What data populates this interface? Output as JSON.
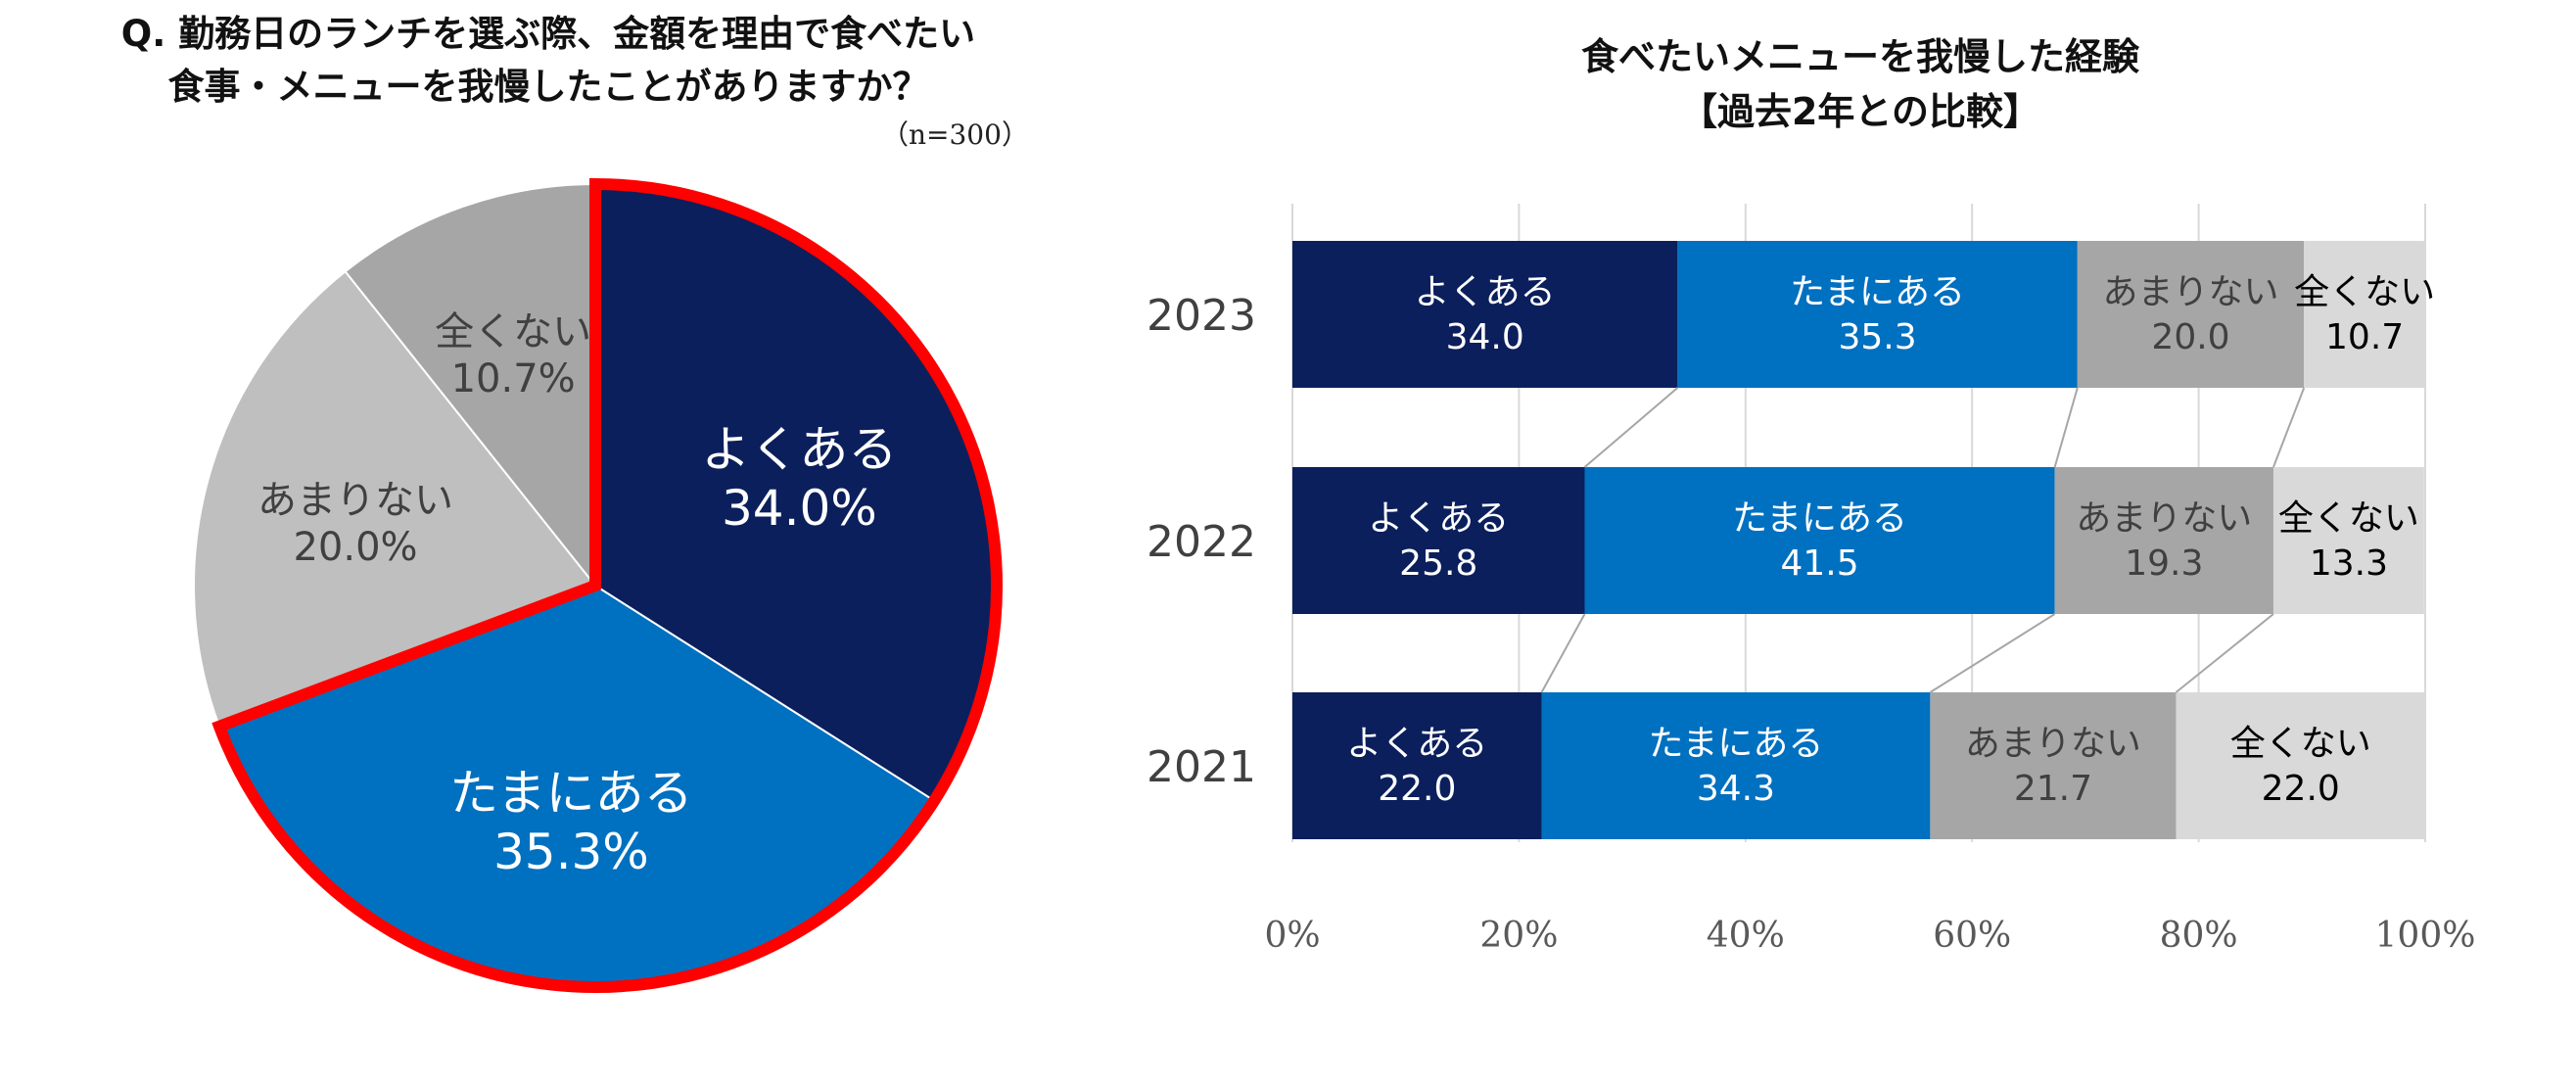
{
  "chart_data": [
    {
      "type": "pie",
      "title_lines": [
        "Q. 勤務日のランチを選ぶ際、金額を理由で食べたい",
        "食事・メニューを我慢したことがありますか？"
      ],
      "subtitle": "（n=300）",
      "slices": [
        {
          "label": "よくある",
          "value": 34.0,
          "display": "34.0%",
          "color": "#0b1f5c",
          "text_color": "#ffffff",
          "highlighted": true
        },
        {
          "label": "たまにある",
          "value": 35.3,
          "display": "35.3%",
          "color": "#0070c0",
          "text_color": "#ffffff",
          "highlighted": true
        },
        {
          "label": "あまりない",
          "value": 20.0,
          "display": "20.0%",
          "color": "#bfbfbf",
          "text_color": "#404040",
          "highlighted": false
        },
        {
          "label": "全くない",
          "value": 10.7,
          "display": "10.7%",
          "color": "#a6a6a6",
          "text_color": "#404040",
          "highlighted": false
        }
      ],
      "highlight_color": "#ff0000"
    },
    {
      "type": "bar",
      "orientation": "horizontal",
      "stacked": true,
      "title_lines": [
        "食べたいメニューを我慢した経験",
        "【過去2年との比較】"
      ],
      "categories": [
        "2023",
        "2022",
        "2021"
      ],
      "series": [
        {
          "name": "よくある",
          "values": [
            34.0,
            25.8,
            22.0
          ],
          "display": [
            "34.0",
            "25.8",
            "22.0"
          ],
          "color": "#0b1f5c",
          "text_color": "#ffffff"
        },
        {
          "name": "たまにある",
          "values": [
            35.3,
            41.5,
            34.3
          ],
          "display": [
            "35.3",
            "41.5",
            "34.3"
          ],
          "color": "#0070c0",
          "text_color": "#ffffff"
        },
        {
          "name": "あまりない",
          "values": [
            20.0,
            19.3,
            21.7
          ],
          "display": [
            "20.0",
            "19.3",
            "21.7"
          ],
          "color": "#a6a6a6",
          "text_color": "#404040"
        },
        {
          "name": "全くない",
          "values": [
            10.7,
            13.3,
            22.0
          ],
          "display": [
            "10.7",
            "13.3",
            "22.0"
          ],
          "color": "#d9d9d9",
          "text_color": "#000000"
        }
      ],
      "xlim": [
        0,
        100
      ],
      "xticks": [
        "0%",
        "20%",
        "40%",
        "60%",
        "80%",
        "100%"
      ],
      "grid": true,
      "series_lines": true
    }
  ]
}
